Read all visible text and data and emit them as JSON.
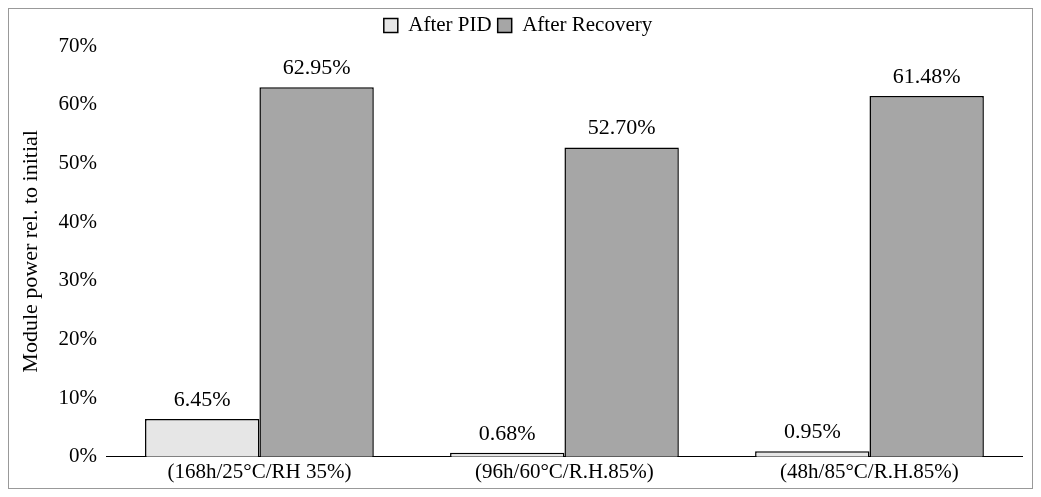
{
  "chart_data": {
    "type": "bar",
    "ylabel": "Module power rel. to initial",
    "categories": [
      "(168h/25°C/RH 35%)",
      "(96h/60°C/R.H.85%)",
      "(48h/85°C/R.H.85%)"
    ],
    "series": [
      {
        "name": "After PID",
        "color": "#e6e6e6",
        "values": [
          6.45,
          0.68,
          0.95
        ],
        "value_labels": [
          "6.45%",
          "0.68%",
          "0.95%"
        ]
      },
      {
        "name": "After Recovery",
        "color": "#a6a6a6",
        "values": [
          62.95,
          52.7,
          61.48
        ],
        "value_labels": [
          "62.95%",
          "52.70%",
          "61.48%"
        ]
      }
    ],
    "ylim": [
      0,
      70
    ],
    "yticks": [
      {
        "value": 0,
        "label": "0%"
      },
      {
        "value": 10,
        "label": "10%"
      },
      {
        "value": 20,
        "label": "20%"
      },
      {
        "value": 30,
        "label": "30%"
      },
      {
        "value": 40,
        "label": "40%"
      },
      {
        "value": 50,
        "label": "50%"
      },
      {
        "value": 60,
        "label": "60%"
      },
      {
        "value": 70,
        "label": "70%"
      }
    ],
    "grid": false,
    "legend": "top"
  }
}
